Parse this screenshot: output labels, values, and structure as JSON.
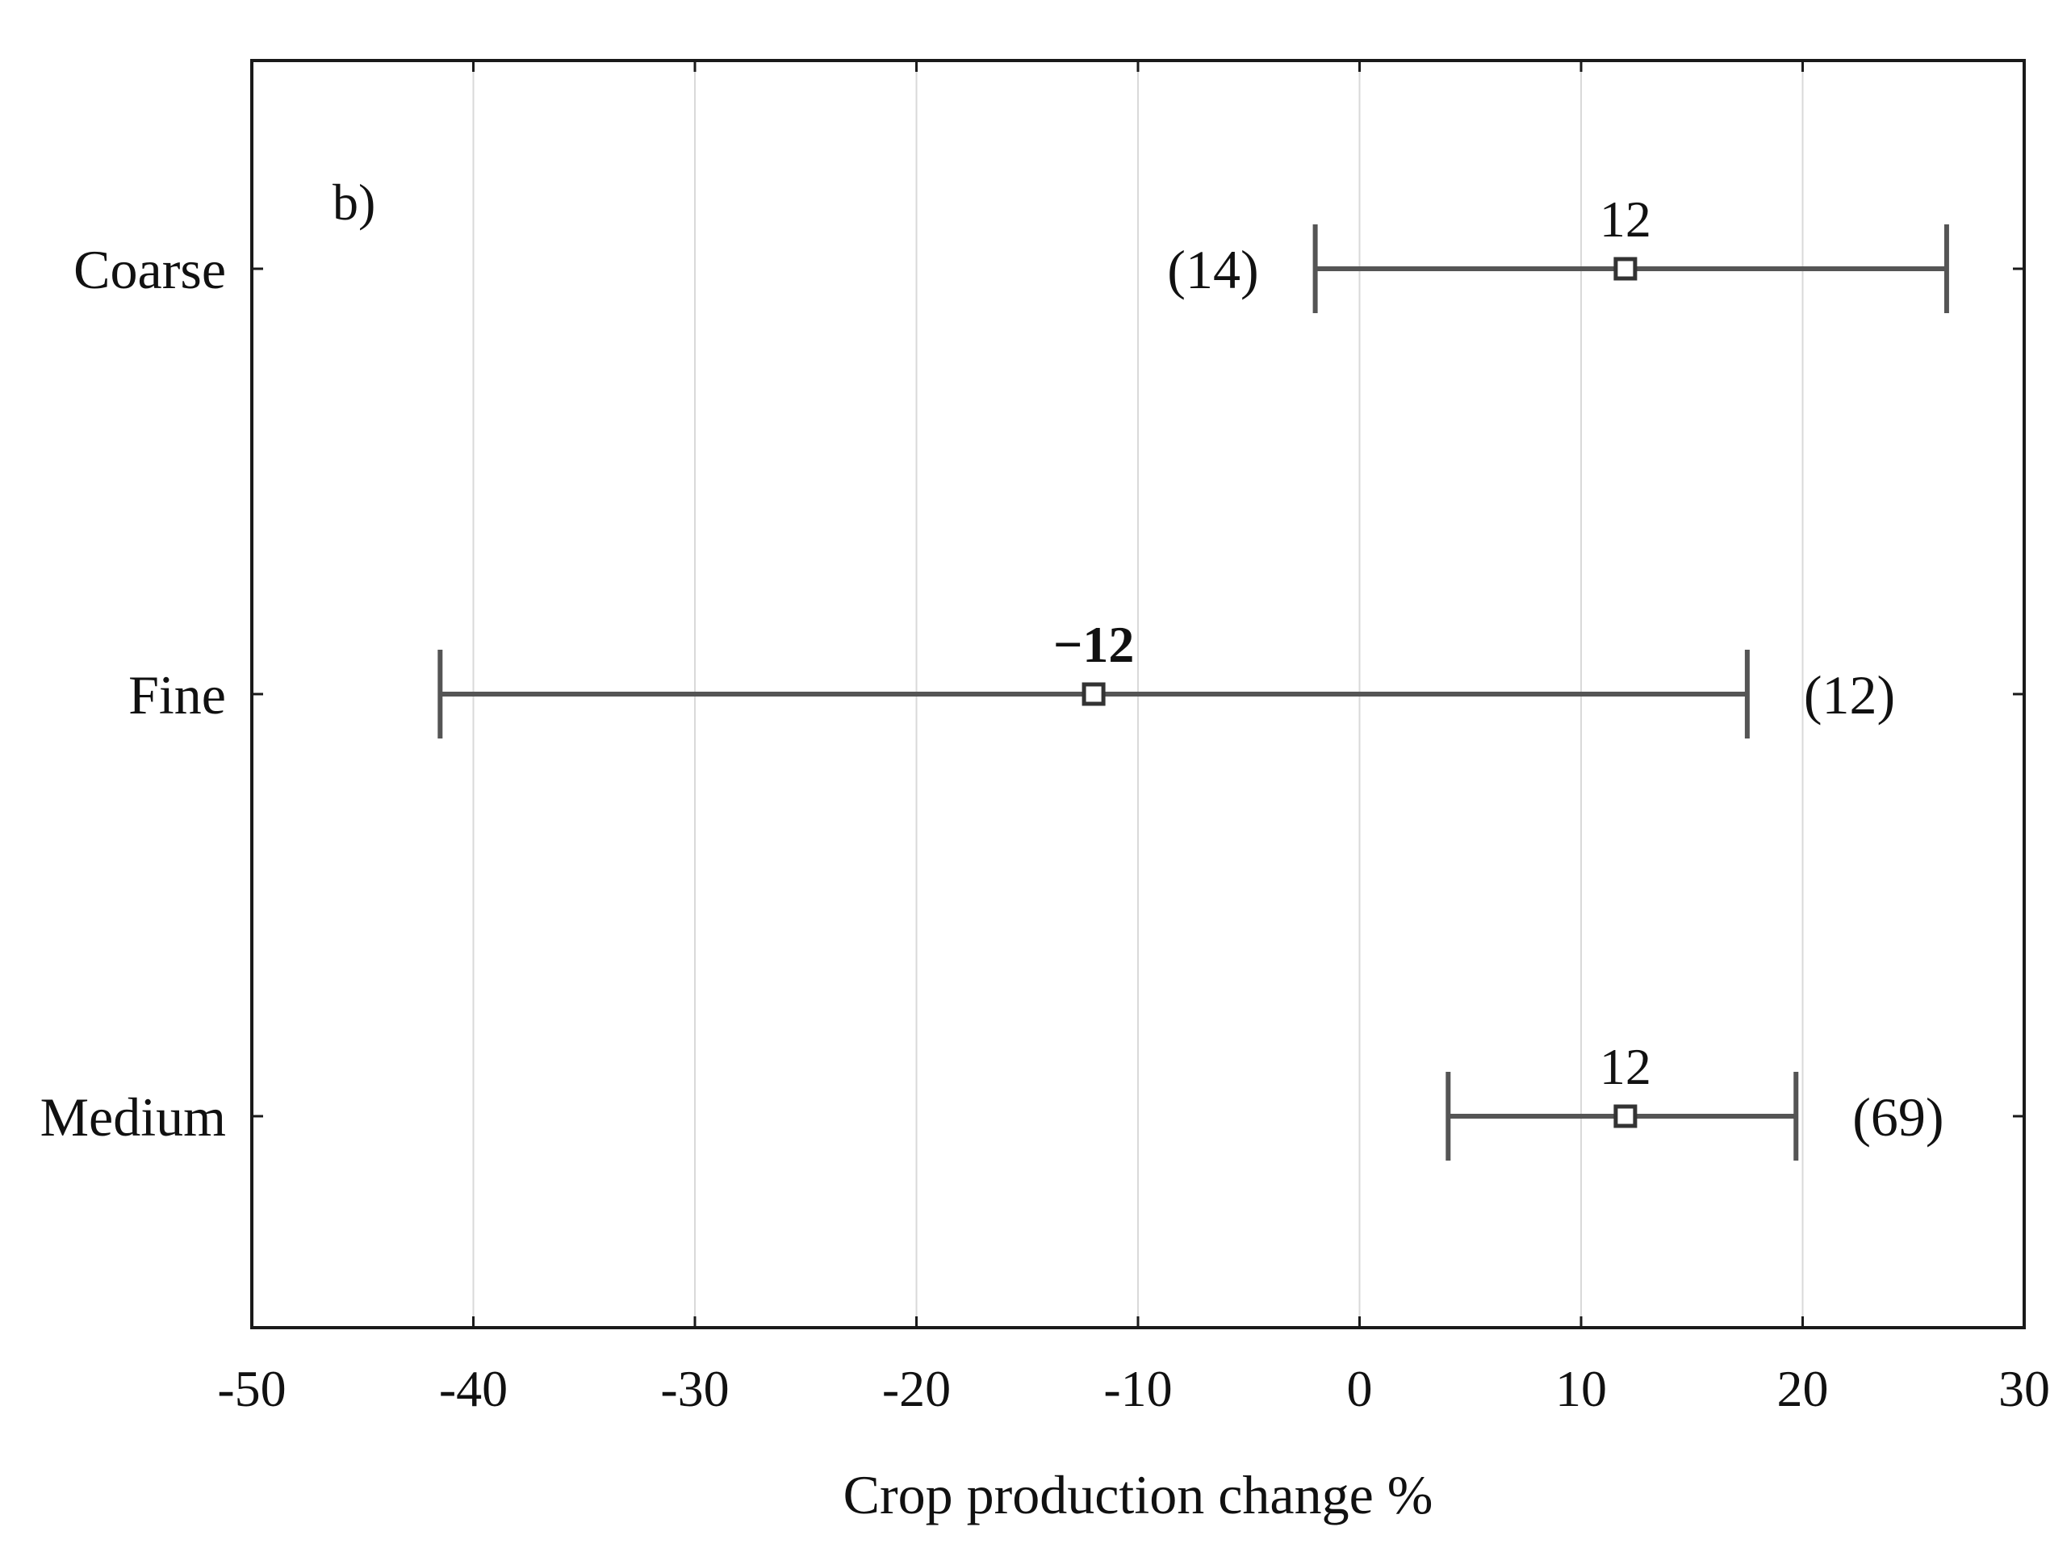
{
  "chart_data": {
    "type": "errorbar",
    "panel_label": "b)",
    "xlabel": "Crop production change %",
    "xlim": [
      -50,
      30
    ],
    "x_ticks": [
      "-50",
      "-40",
      "-30",
      "-20",
      "-10",
      "0",
      "10",
      "20",
      "30"
    ],
    "grid": "vertical",
    "categories": [
      "Coarse",
      "Fine",
      "Medium"
    ],
    "rows": [
      {
        "category": "Coarse",
        "mean": 12,
        "lower": -2,
        "upper": 26.5,
        "mean_label": "12",
        "n_label": "(14)",
        "n_side": "left"
      },
      {
        "category": "Fine",
        "mean": -12,
        "lower": -41.5,
        "upper": 17.5,
        "mean_label": "−12",
        "n_label": "(12)",
        "n_side": "right"
      },
      {
        "category": "Medium",
        "mean": 12,
        "lower": 4,
        "upper": 19.7,
        "mean_label": "12",
        "n_label": "(69)",
        "n_side": "right"
      }
    ]
  }
}
